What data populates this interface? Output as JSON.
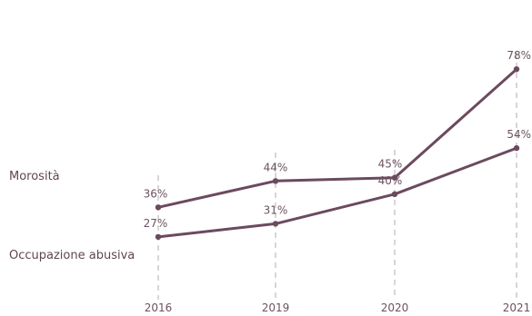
{
  "chart_data": {
    "type": "line",
    "categories": [
      "2016",
      "2019",
      "2020",
      "2021"
    ],
    "series": [
      {
        "name": "Morosità",
        "values": [
          36,
          44,
          45,
          78
        ],
        "labels": [
          "36%",
          "44%",
          "45%",
          "78%"
        ]
      },
      {
        "name": "Occupazione abusiva",
        "values": [
          27,
          31,
          40,
          54
        ],
        "labels": [
          "27%",
          "31%",
          "40%",
          "54%"
        ]
      }
    ],
    "grid": false,
    "legend": "left",
    "line_color": "#6b4a5e",
    "text_color": "#6b5360"
  }
}
